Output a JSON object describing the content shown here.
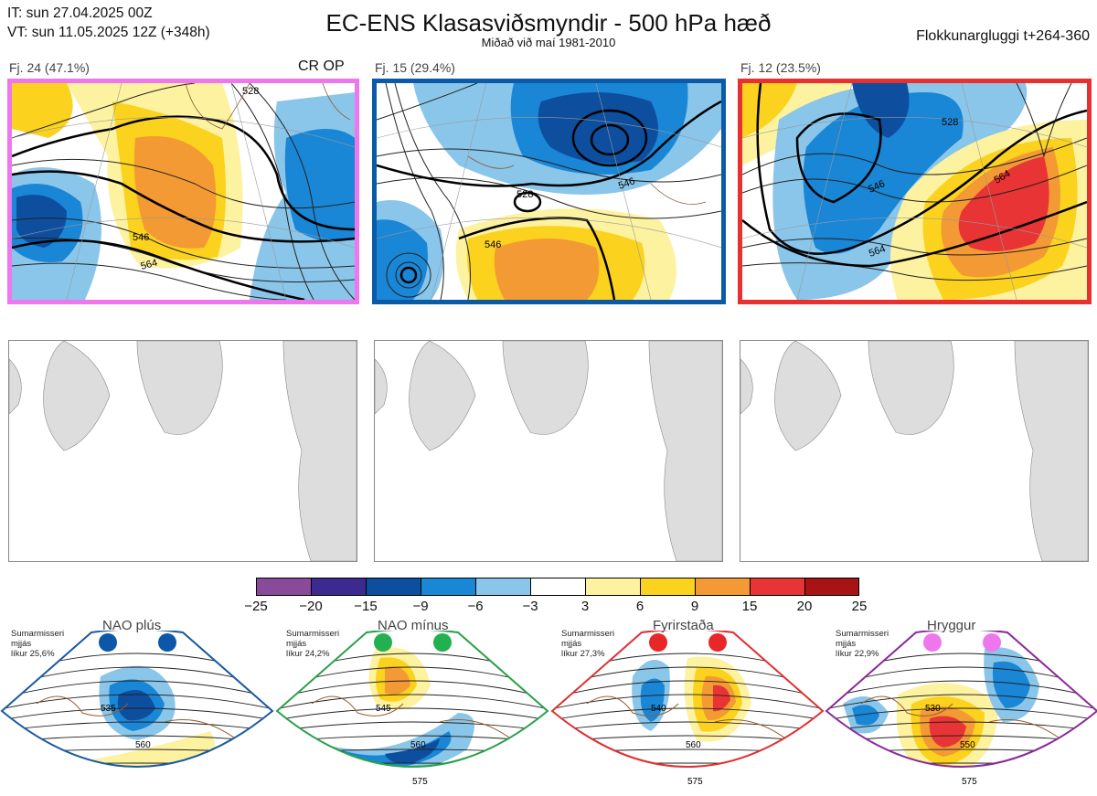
{
  "header": {
    "init_time": "IT: sun 27.04.2025 00Z",
    "valid_time": "VT: sun 11.05.2025 12Z  (+348h)",
    "title": "EC-ENS Klasasviðsmyndir - 500 hPa hæð",
    "subtitle": "Miðað við maí 1981-2010",
    "window": "Flokkunargluggi t+264-360"
  },
  "clusters": [
    {
      "label": "Fj. 24 (47.1%)",
      "members": 24,
      "percent": 47.1,
      "tag": "CR OP",
      "border_color": "#ee77ee",
      "contours": [
        "546",
        "546",
        "564",
        "546",
        "528"
      ]
    },
    {
      "label": "Fj. 15 (29.4%)",
      "members": 15,
      "percent": 29.4,
      "tag": "",
      "border_color": "#0a5aa8",
      "contours": [
        "546",
        "528",
        "528",
        "546",
        "564",
        "564"
      ]
    },
    {
      "label": "Fj. 12 (23.5%)",
      "members": 12,
      "percent": 23.5,
      "tag": "",
      "border_color": "#e83030",
      "contours": [
        "528",
        "546",
        "564",
        "564",
        "546",
        "546"
      ]
    }
  ],
  "colorbar": {
    "ticks": [
      "−25",
      "−20",
      "−15",
      "−9",
      "−6",
      "−3",
      "3",
      "6",
      "9",
      "15",
      "20",
      "25"
    ],
    "colors": [
      "#8a4a9a",
      "#3d2a90",
      "#0d4f9e",
      "#1a86d6",
      "#8ac6ea",
      "#ffffff",
      "#fdf2a0",
      "#fbd21e",
      "#f39a34",
      "#e83434",
      "#a81414"
    ]
  },
  "regimes": [
    {
      "name": "NAO plús",
      "note_lines": [
        "Sumarmisseri",
        "mjjás",
        "líkur 25,6%"
      ],
      "probability": 25.6,
      "border_color": "#1a5aa0",
      "dot_color": "#0d57a8",
      "contours": [
        "535",
        "560"
      ]
    },
    {
      "name": "NAO mínus",
      "note_lines": [
        "Sumarmisseri",
        "mjjás",
        "líkur 24,2%"
      ],
      "probability": 24.2,
      "border_color": "#2aa04a",
      "dot_color": "#22b050",
      "contours": [
        "545",
        "560",
        "575"
      ]
    },
    {
      "name": "Fyrirstaða",
      "note_lines": [
        "Sumarmisseri",
        "mjjás",
        "líkur 27,3%"
      ],
      "probability": 27.3,
      "border_color": "#e03030",
      "dot_color": "#e82828",
      "contours": [
        "540",
        "560",
        "575"
      ]
    },
    {
      "name": "Hryggur",
      "note_lines": [
        "Sumarmisseri",
        "mjjás",
        "líkur 22,9%"
      ],
      "probability": 22.9,
      "border_color": "#8a2a9a",
      "dot_color": "#ee77ee",
      "contours": [
        "530",
        "550",
        "575"
      ]
    }
  ]
}
